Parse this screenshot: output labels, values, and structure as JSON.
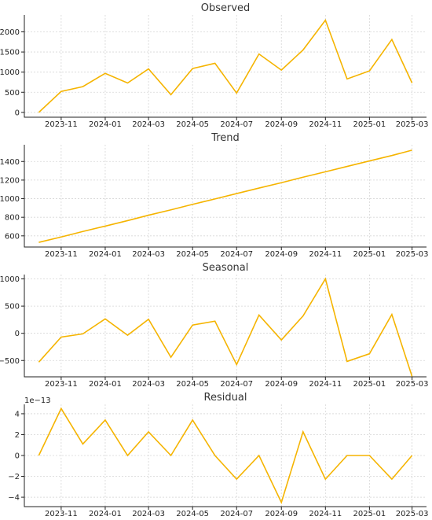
{
  "chart_data": [
    {
      "type": "line",
      "title": "Observed",
      "x": [
        "2023-10-01",
        "2023-11-01",
        "2023-12-01",
        "2024-01-01",
        "2024-02-01",
        "2024-03-01",
        "2024-04-01",
        "2024-05-01",
        "2024-06-01",
        "2024-07-01",
        "2024-08-01",
        "2024-09-01",
        "2024-10-01",
        "2024-11-01",
        "2024-12-01",
        "2025-01-01",
        "2025-02-01",
        "2025-03-01"
      ],
      "values": [
        0,
        520,
        640,
        970,
        730,
        1080,
        440,
        1090,
        1220,
        480,
        1450,
        1050,
        1550,
        2290,
        830,
        1030,
        1810,
        730
      ],
      "ylim": [
        -120,
        2420
      ],
      "yticks": [
        0,
        500,
        1000,
        1500,
        2000
      ],
      "ytick_labels": [
        "0",
        "500",
        "1000",
        "1500",
        "2000"
      ],
      "offset_text": "",
      "color": "#f5b400",
      "grid": true
    },
    {
      "type": "line",
      "title": "Trend",
      "x": [
        "2023-10-01",
        "2023-11-01",
        "2023-12-01",
        "2024-01-01",
        "2024-02-01",
        "2024-03-01",
        "2024-04-01",
        "2024-05-01",
        "2024-06-01",
        "2024-07-01",
        "2024-08-01",
        "2024-09-01",
        "2024-10-01",
        "2024-11-01",
        "2024-12-01",
        "2025-01-01",
        "2025-02-01",
        "2025-03-01"
      ],
      "values": [
        530,
        588,
        647,
        705,
        764,
        822,
        880,
        939,
        997,
        1055,
        1114,
        1172,
        1231,
        1289,
        1347,
        1406,
        1464,
        1522
      ],
      "ylim": [
        480,
        1580
      ],
      "yticks": [
        600,
        800,
        1000,
        1200,
        1400
      ],
      "ytick_labels": [
        "600",
        "800",
        "1000",
        "1200",
        "1400"
      ],
      "offset_text": "",
      "color": "#f5b400",
      "grid": true
    },
    {
      "type": "line",
      "title": "Seasonal",
      "x": [
        "2023-10-01",
        "2023-11-01",
        "2023-12-01",
        "2024-01-01",
        "2024-02-01",
        "2024-03-01",
        "2024-04-01",
        "2024-05-01",
        "2024-06-01",
        "2024-07-01",
        "2024-08-01",
        "2024-09-01",
        "2024-10-01",
        "2024-11-01",
        "2024-12-01",
        "2025-01-01",
        "2025-02-01",
        "2025-03-01"
      ],
      "values": [
        -530,
        -70,
        -10,
        265,
        -35,
        258,
        -440,
        152,
        223,
        -575,
        336,
        -122,
        319,
        1001,
        -517,
        -376,
        346,
        -792
      ],
      "ylim": [
        -800,
        1080
      ],
      "yticks": [
        -500,
        0,
        500,
        1000
      ],
      "ytick_labels": [
        "−500",
        "0",
        "500",
        "1000"
      ],
      "offset_text": "",
      "color": "#f5b400",
      "grid": true
    },
    {
      "type": "line",
      "title": "Residual",
      "x": [
        "2023-10-01",
        "2023-11-01",
        "2023-12-01",
        "2024-01-01",
        "2024-02-01",
        "2024-03-01",
        "2024-04-01",
        "2024-05-01",
        "2024-06-01",
        "2024-07-01",
        "2024-08-01",
        "2024-09-01",
        "2024-10-01",
        "2024-11-01",
        "2024-12-01",
        "2025-01-01",
        "2025-02-01",
        "2025-03-01"
      ],
      "values": [
        0,
        4.5,
        1.1,
        3.4,
        0,
        2.27,
        0,
        3.4,
        0,
        -2.27,
        0,
        -4.5,
        2.27,
        -2.27,
        0,
        0,
        -2.27,
        0
      ],
      "value_scale": "1e-13",
      "ylim": [
        -4.9,
        4.9
      ],
      "yticks": [
        -4,
        -2,
        0,
        2,
        4
      ],
      "ytick_labels": [
        "−4",
        "−2",
        "0",
        "2",
        "4"
      ],
      "offset_text": "1e−13",
      "color": "#f5b400",
      "grid": true
    }
  ],
  "x_ticks": [
    "2023-11-01",
    "2024-01-01",
    "2024-03-01",
    "2024-05-01",
    "2024-07-01",
    "2024-09-01",
    "2024-11-01",
    "2025-01-01",
    "2025-03-01"
  ],
  "x_tick_labels": [
    "2023-11",
    "2024-01",
    "2024-03",
    "2024-05",
    "2024-07",
    "2024-09",
    "2024-11",
    "2025-01",
    "2025-03"
  ],
  "x_range": [
    "2023-09-11",
    "2025-03-21"
  ]
}
